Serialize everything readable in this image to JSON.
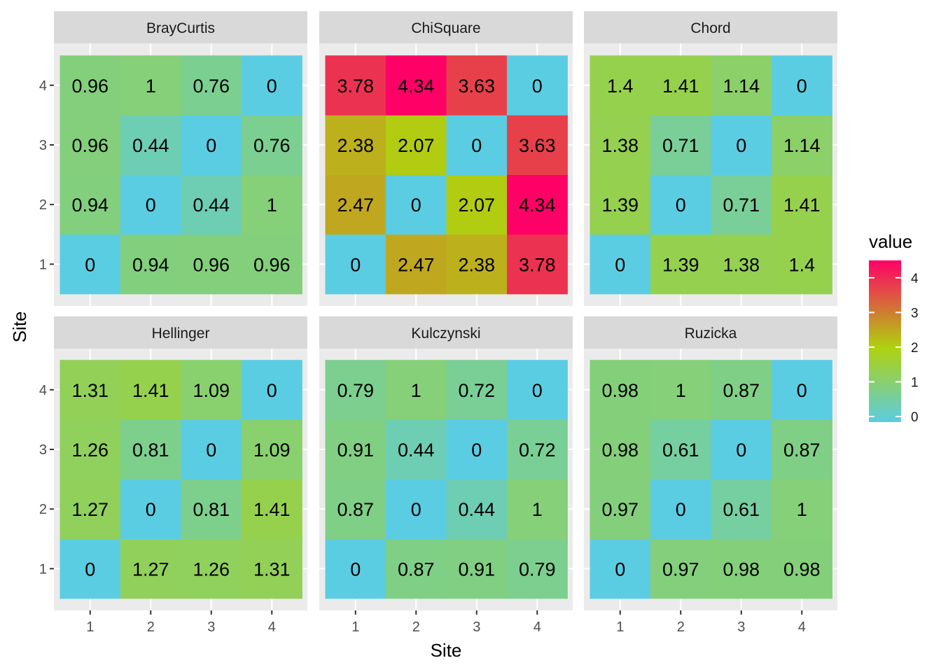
{
  "chart_data": {
    "type": "heatmap",
    "xlabel": "Site",
    "ylabel": "Site",
    "x_categories": [
      "1",
      "2",
      "3",
      "4"
    ],
    "y_categories": [
      "1",
      "2",
      "3",
      "4"
    ],
    "legend": {
      "title": "value",
      "position": "right",
      "ticks": [
        "0",
        "1",
        "2",
        "3",
        "4"
      ],
      "range": [
        0,
        4.34
      ],
      "colors": [
        "#5BCDE2",
        "#AFD20E",
        "#FF0066"
      ]
    },
    "grid": true,
    "panels": [
      {
        "title": "BrayCurtis",
        "values": [
          [
            0,
            0.94,
            0.96,
            0.96
          ],
          [
            0.94,
            0,
            0.44,
            1
          ],
          [
            0.96,
            0.44,
            0,
            0.76
          ],
          [
            0.96,
            1,
            0.76,
            0
          ]
        ],
        "labels": [
          [
            "0",
            "0.94",
            "0.96",
            "0.96"
          ],
          [
            "0.94",
            "0",
            "0.44",
            "1"
          ],
          [
            "0.96",
            "0.44",
            "0",
            "0.76"
          ],
          [
            "0.96",
            "1",
            "0.76",
            "0"
          ]
        ]
      },
      {
        "title": "ChiSquare",
        "values": [
          [
            0,
            2.47,
            2.38,
            3.78
          ],
          [
            2.47,
            0,
            2.07,
            4.34
          ],
          [
            2.38,
            2.07,
            0,
            3.63
          ],
          [
            3.78,
            4.34,
            3.63,
            0
          ]
        ],
        "labels": [
          [
            "0",
            "2.47",
            "2.38",
            "3.78"
          ],
          [
            "2.47",
            "0",
            "2.07",
            "4.34"
          ],
          [
            "2.38",
            "2.07",
            "0",
            "3.63"
          ],
          [
            "3.78",
            "4.34",
            "3.63",
            "0"
          ]
        ]
      },
      {
        "title": "Chord",
        "values": [
          [
            0,
            1.39,
            1.38,
            1.4
          ],
          [
            1.39,
            0,
            0.71,
            1.41
          ],
          [
            1.38,
            0.71,
            0,
            1.14
          ],
          [
            1.4,
            1.41,
            1.14,
            0
          ]
        ],
        "labels": [
          [
            "0",
            "1.39",
            "1.38",
            "1.4"
          ],
          [
            "1.39",
            "0",
            "0.71",
            "1.41"
          ],
          [
            "1.38",
            "0.71",
            "0",
            "1.14"
          ],
          [
            "1.4",
            "1.41",
            "1.14",
            "0"
          ]
        ]
      },
      {
        "title": "Hellinger",
        "values": [
          [
            0,
            1.27,
            1.26,
            1.31
          ],
          [
            1.27,
            0,
            0.81,
            1.41
          ],
          [
            1.26,
            0.81,
            0,
            1.09
          ],
          [
            1.31,
            1.41,
            1.09,
            0
          ]
        ],
        "labels": [
          [
            "0",
            "1.27",
            "1.26",
            "1.31"
          ],
          [
            "1.27",
            "0",
            "0.81",
            "1.41"
          ],
          [
            "1.26",
            "0.81",
            "0",
            "1.09"
          ],
          [
            "1.31",
            "1.41",
            "1.09",
            "0"
          ]
        ]
      },
      {
        "title": "Kulczynski",
        "values": [
          [
            0,
            0.87,
            0.91,
            0.79
          ],
          [
            0.87,
            0,
            0.44,
            1
          ],
          [
            0.91,
            0.44,
            0,
            0.72
          ],
          [
            0.79,
            1,
            0.72,
            0
          ]
        ],
        "labels": [
          [
            "0",
            "0.87",
            "0.91",
            "0.79"
          ],
          [
            "0.87",
            "0",
            "0.44",
            "1"
          ],
          [
            "0.91",
            "0.44",
            "0",
            "0.72"
          ],
          [
            "0.79",
            "1",
            "0.72",
            "0"
          ]
        ]
      },
      {
        "title": "Ruzicka",
        "values": [
          [
            0,
            0.97,
            0.98,
            0.98
          ],
          [
            0.97,
            0,
            0.61,
            1
          ],
          [
            0.98,
            0.61,
            0,
            0.87
          ],
          [
            0.98,
            1,
            0.87,
            0
          ]
        ],
        "labels": [
          [
            "0",
            "0.97",
            "0.98",
            "0.98"
          ],
          [
            "0.97",
            "0",
            "0.61",
            "1"
          ],
          [
            "0.98",
            "0.61",
            "0",
            "0.87"
          ],
          [
            "0.98",
            "1",
            "0.87",
            "0"
          ]
        ]
      }
    ]
  }
}
